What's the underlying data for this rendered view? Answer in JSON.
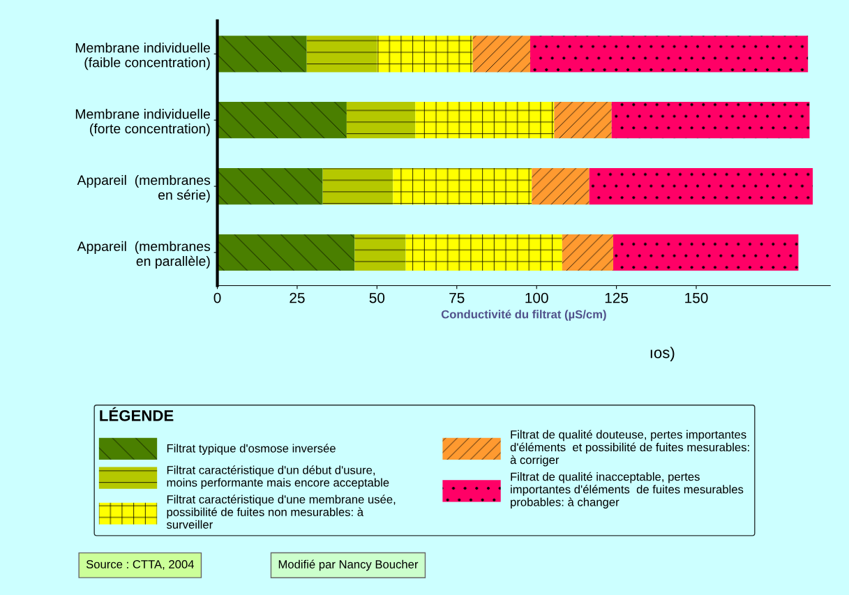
{
  "chart_data": {
    "type": "bar",
    "orientation": "horizontal",
    "stacked": true,
    "xlabel": "Conductivité du filtrat (µS/cm)",
    "legend_title": "LÉGENDE",
    "legend": "bottom",
    "grid": false,
    "categories": [
      "Membrane individuelle\n(faible concentration)",
      "Membrane individuelle\n(forte concentration)",
      "Appareil  (membranes\nen série)",
      "Appareil  (membranes\nen parallèle)"
    ],
    "xlim": [
      0,
      192
    ],
    "xticks": [
      0,
      25,
      50,
      75,
      100,
      125,
      150
    ],
    "series": [
      {
        "name": "Filtrat typique d'osmose inversée",
        "color": "#4a7f00",
        "values": [
          28,
          40.5,
          33,
          43
        ]
      },
      {
        "name": "Filtrat caractéristique d'un début d'usure,\nmoins performante mais encore acceptable",
        "color": "#b5c800",
        "values": [
          22,
          21.5,
          22,
          16
        ]
      },
      {
        "name": "Filtrat caractéristique d'une membrane usée,\npossibilité de fuites non mesurables: à\nsurveiller",
        "color": "#ffff00",
        "values": [
          30,
          43.5,
          43.5,
          49
        ]
      },
      {
        "name": "Filtrat de qualité douteuse, pertes importantes\nd'éléments  et possibilité de fuites mesurables:\nà corriger",
        "color": "#ff9a30",
        "values": [
          18,
          18,
          18,
          16
        ]
      },
      {
        "name": "Filtrat de qualité inacceptable, pertes\nimportantes d'éléments  de fuites mesurables\nprobables: à changer",
        "color": "#ff0066",
        "values": [
          87,
          62,
          70,
          58
        ]
      }
    ],
    "annotations": [
      "ıos)",
      "Source : CTTA, 2004",
      "Modifié par Nancy Boucher"
    ]
  }
}
